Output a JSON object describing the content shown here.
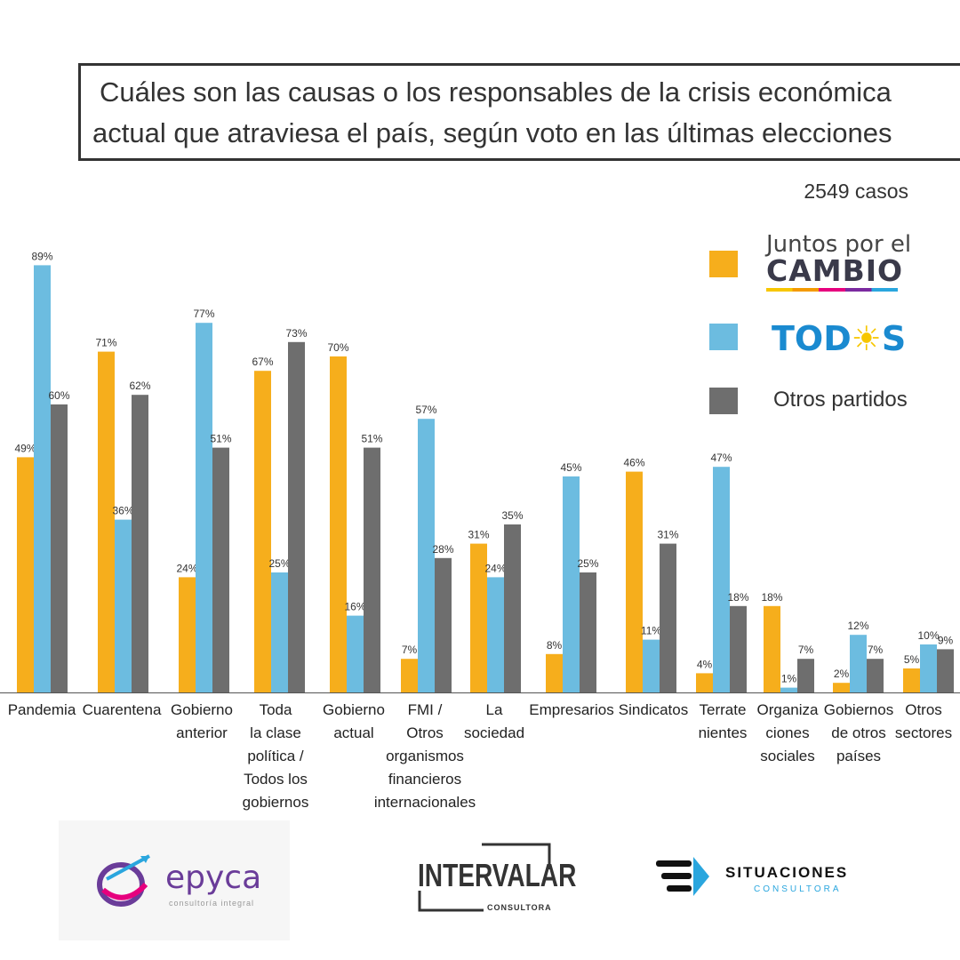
{
  "title": {
    "line1": "Cuáles son las causas o los responsables de la crisis económica",
    "line2": "actual que atraviesa el país, según voto en las últimas elecciones"
  },
  "cases_text": "2549 casos",
  "legend": {
    "juntos_top": "Juntos por el",
    "juntos_bottom": "CAMBIO",
    "todos_left": "TOD",
    "todos_sun": "☀",
    "todos_right": "S",
    "otros": "Otros partidos"
  },
  "colors": {
    "juntos": "#F6AE1C",
    "todos": "#6CBCE0",
    "otros": "#6E6E6E"
  },
  "chart_data": {
    "type": "bar",
    "categories": [
      "Pandemia",
      "Cuarentena",
      "Gobierno\nanterior",
      "Toda\nla clase\npolítica /\nTodos los\ngobiernos",
      "Gobierno\nactual",
      "FMI /\nOtros\norganismos\nfinancieros\ninternacionales",
      "La\nsociedad",
      "Empresarios",
      "Sindicatos",
      "Terrate\nnientes",
      "Organiza\nciones\nsociales",
      "Gobiernos\nde otros\npaíses",
      "Otros\nsectores"
    ],
    "series": [
      {
        "name": "Juntos por el CAMBIO",
        "values": [
          49,
          71,
          24,
          67,
          70,
          7,
          31,
          8,
          46,
          4,
          18,
          2,
          5
        ]
      },
      {
        "name": "TODOS",
        "values": [
          89,
          36,
          77,
          25,
          16,
          57,
          24,
          45,
          11,
          47,
          1,
          12,
          10
        ]
      },
      {
        "name": "Otros partidos",
        "values": [
          60,
          62,
          51,
          73,
          51,
          28,
          35,
          25,
          31,
          18,
          7,
          7,
          9
        ]
      }
    ],
    "value_suffix": "%",
    "ylim": [
      0,
      100
    ],
    "grid": false,
    "legend_position": "right"
  },
  "logos": {
    "epyca_name": "epyca",
    "epyca_sub": "consultoría integral",
    "intervalar_name": "INTERVALAR",
    "intervalar_sub": "CONSULTORA",
    "situaciones_name": "SITUACIONES",
    "situaciones_sub": "CONSULTORA"
  }
}
